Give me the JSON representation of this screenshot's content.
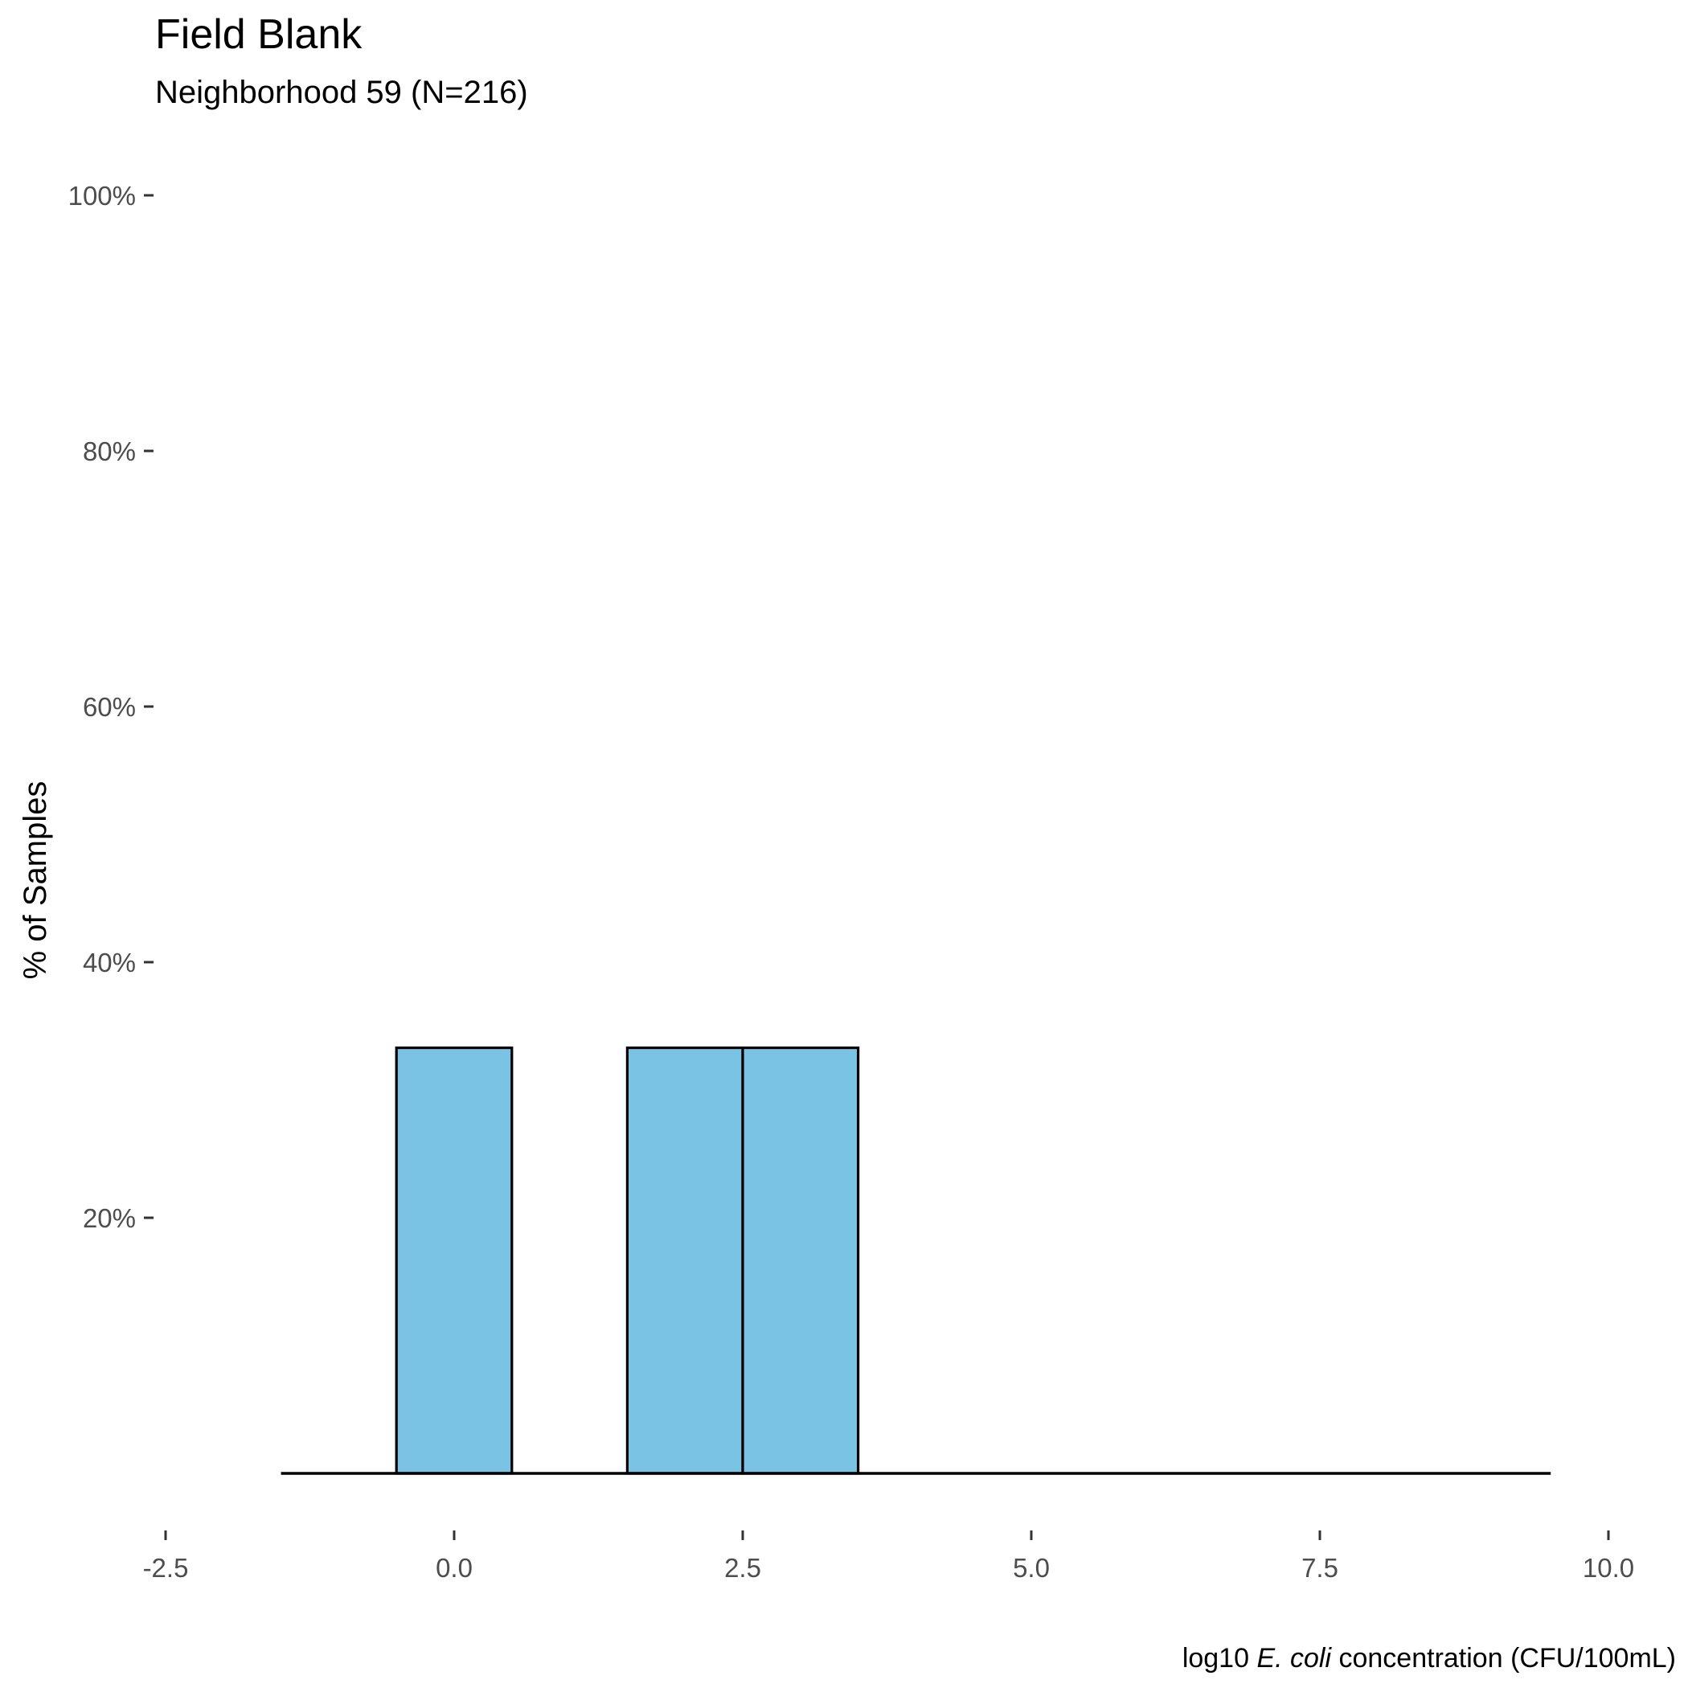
{
  "chart_data": {
    "type": "bar",
    "title": "Field Blank",
    "subtitle": "Neighborhood 59 (N=216)",
    "xlabel": {
      "prefix": "log10 ",
      "italic": "E. coli",
      "suffix": " concentration (CFU/100mL)"
    },
    "ylabel": "% of Samples",
    "xlim": [
      -2.5,
      10.0
    ],
    "ylim": [
      0,
      100
    ],
    "x_ticks": [
      {
        "value": -2.5,
        "label": "-2.5"
      },
      {
        "value": 0.0,
        "label": "0.0"
      },
      {
        "value": 2.5,
        "label": "2.5"
      },
      {
        "value": 5.0,
        "label": "5.0"
      },
      {
        "value": 7.5,
        "label": "7.5"
      },
      {
        "value": 10.0,
        "label": "10.0"
      }
    ],
    "y_ticks": [
      {
        "value": 20,
        "label": "20%"
      },
      {
        "value": 40,
        "label": "40%"
      },
      {
        "value": 60,
        "label": "60%"
      },
      {
        "value": 80,
        "label": "80%"
      },
      {
        "value": 100,
        "label": "100%"
      }
    ],
    "bin_width": 1,
    "bins": [
      {
        "x": -1,
        "y": 0
      },
      {
        "x": 0,
        "y": 33.3
      },
      {
        "x": 1,
        "y": 0
      },
      {
        "x": 2,
        "y": 33.3
      },
      {
        "x": 3,
        "y": 33.3
      },
      {
        "x": 4,
        "y": 0
      },
      {
        "x": 5,
        "y": 0
      },
      {
        "x": 6,
        "y": 0
      },
      {
        "x": 7,
        "y": 0
      },
      {
        "x": 8,
        "y": 0
      },
      {
        "x": 9,
        "y": 0
      }
    ],
    "grid": false,
    "colors": {
      "bar_fill": "#7ac3e4",
      "bar_outline": "#000000"
    }
  }
}
